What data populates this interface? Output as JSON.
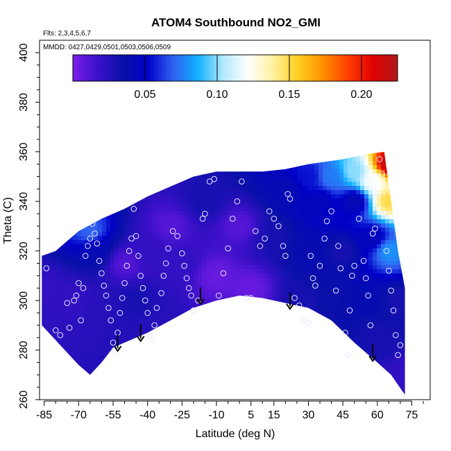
{
  "chart_data": {
    "type": "heatmap",
    "title": "ATOM4 Southbound NO2_GMI",
    "flights_note": "Flts: 2,3,4,5,6,7",
    "dates_note": "MMDD: 0427,0429,0501,0503,0506,0509",
    "xlabel": "Latitude (deg N)",
    "ylabel": "Theta (C)",
    "xlim": [
      -87,
      83
    ],
    "ylim": [
      260,
      405
    ],
    "xticks": [
      -85,
      -70,
      -55,
      -40,
      -25,
      -10,
      5,
      15,
      30,
      45,
      60,
      75
    ],
    "xtick_labels": [
      "-85",
      "-70",
      "-55",
      "-40",
      "-25",
      "-10",
      "5",
      "15",
      "30",
      "45",
      "60",
      "75"
    ],
    "yticks": [
      260,
      280,
      300,
      320,
      340,
      360,
      380,
      400
    ],
    "ytick_labels": [
      "260",
      "280",
      "300",
      "320",
      "340",
      "360",
      "380",
      "400"
    ],
    "colorbar": {
      "range": [
        0,
        0.225
      ],
      "ticks": [
        0.05,
        0.1,
        0.15,
        0.2
      ],
      "tick_labels": [
        "0.05",
        "0.10",
        "0.15",
        "0.20"
      ],
      "colors": [
        "#7a1ee8",
        "#3a10c8",
        "#0a10a8",
        "#0000c8",
        "#3060f0",
        "#10b0ff",
        "#b0e8ff",
        "#ffffff",
        "#fff0a0",
        "#ffd020",
        "#ff9000",
        "#ff4000",
        "#e00000",
        "#b01818"
      ]
    },
    "domain_top": [
      [
        -86,
        318
      ],
      [
        -80,
        320
      ],
      [
        -70,
        328
      ],
      [
        -60,
        333
      ],
      [
        -50,
        337
      ],
      [
        -40,
        342
      ],
      [
        -30,
        346
      ],
      [
        -20,
        350
      ],
      [
        -10,
        352
      ],
      [
        0,
        352
      ],
      [
        10,
        352
      ],
      [
        20,
        353
      ],
      [
        30,
        355
      ],
      [
        45,
        357
      ],
      [
        55,
        359
      ],
      [
        63,
        360
      ],
      [
        66,
        340
      ],
      [
        69,
        320
      ],
      [
        72,
        305
      ]
    ],
    "domain_bottom": [
      [
        72,
        262
      ],
      [
        69,
        266
      ],
      [
        66,
        270
      ],
      [
        60,
        275
      ],
      [
        50,
        283
      ],
      [
        40,
        292
      ],
      [
        30,
        297
      ],
      [
        20,
        299
      ],
      [
        10,
        301
      ],
      [
        0,
        302
      ],
      [
        -10,
        300
      ],
      [
        -20,
        297
      ],
      [
        -30,
        292
      ],
      [
        -40,
        287
      ],
      [
        -50,
        283
      ],
      [
        -55,
        281
      ],
      [
        -60,
        275
      ],
      [
        -65,
        270
      ],
      [
        -70,
        274
      ],
      [
        -75,
        279
      ],
      [
        -80,
        284
      ],
      [
        -86,
        290
      ]
    ],
    "field_points": [
      {
        "x": -85,
        "y": 305,
        "v": 0.02
      },
      {
        "x": -72,
        "y": 300,
        "v": 0.02
      },
      {
        "x": -65,
        "y": 328,
        "v": 0.07
      },
      {
        "x": -62,
        "y": 320,
        "v": 0.04
      },
      {
        "x": -60,
        "y": 295,
        "v": 0.025
      },
      {
        "x": -50,
        "y": 315,
        "v": 0.01
      },
      {
        "x": -45,
        "y": 300,
        "v": 0.03
      },
      {
        "x": -40,
        "y": 320,
        "v": 0.02
      },
      {
        "x": -35,
        "y": 290,
        "v": 0.025
      },
      {
        "x": -30,
        "y": 330,
        "v": 0.01
      },
      {
        "x": -25,
        "y": 315,
        "v": 0.02
      },
      {
        "x": -15,
        "y": 340,
        "v": 0.03
      },
      {
        "x": -10,
        "y": 310,
        "v": 0.005
      },
      {
        "x": 0,
        "y": 330,
        "v": 0.01
      },
      {
        "x": 5,
        "y": 305,
        "v": 0.005
      },
      {
        "x": 15,
        "y": 325,
        "v": 0.03
      },
      {
        "x": 20,
        "y": 345,
        "v": 0.04
      },
      {
        "x": 28,
        "y": 300,
        "v": 0.03
      },
      {
        "x": 30,
        "y": 320,
        "v": 0.04
      },
      {
        "x": 35,
        "y": 340,
        "v": 0.045
      },
      {
        "x": 40,
        "y": 300,
        "v": 0.035
      },
      {
        "x": 45,
        "y": 320,
        "v": 0.03
      },
      {
        "x": 50,
        "y": 340,
        "v": 0.04
      },
      {
        "x": 55,
        "y": 300,
        "v": 0.04
      },
      {
        "x": 58,
        "y": 325,
        "v": 0.045
      },
      {
        "x": 60,
        "y": 285,
        "v": 0.03
      },
      {
        "x": 65,
        "y": 320,
        "v": 0.08
      },
      {
        "x": 65,
        "y": 340,
        "v": 0.15
      },
      {
        "x": 65,
        "y": 355,
        "v": 0.22
      },
      {
        "x": 58,
        "y": 348,
        "v": 0.12
      },
      {
        "x": 50,
        "y": 352,
        "v": 0.1
      },
      {
        "x": 40,
        "y": 350,
        "v": 0.075
      },
      {
        "x": 30,
        "y": 350,
        "v": 0.055
      },
      {
        "x": 70,
        "y": 300,
        "v": 0.03
      },
      {
        "x": 72,
        "y": 270,
        "v": 0.02
      }
    ],
    "observations": [
      [
        -84,
        313
      ],
      [
        -80,
        288
      ],
      [
        -78,
        286
      ],
      [
        -75,
        299
      ],
      [
        -74,
        289
      ],
      [
        -72,
        300
      ],
      [
        -71,
        302
      ],
      [
        -70,
        307
      ],
      [
        -69,
        292
      ],
      [
        -68,
        305
      ],
      [
        -67,
        318
      ],
      [
        -66,
        322
      ],
      [
        -65,
        325
      ],
      [
        -64,
        331
      ],
      [
        -63,
        327
      ],
      [
        -62,
        323
      ],
      [
        -61,
        316
      ],
      [
        -60,
        311
      ],
      [
        -59,
        306
      ],
      [
        -58,
        302
      ],
      [
        -57,
        297
      ],
      [
        -56,
        292
      ],
      [
        -55,
        283
      ],
      [
        -54,
        279
      ],
      [
        -53,
        287
      ],
      [
        -52,
        295
      ],
      [
        -51,
        301
      ],
      [
        -50,
        307
      ],
      [
        -49,
        314
      ],
      [
        -48,
        320
      ],
      [
        -47,
        325
      ],
      [
        -46,
        337
      ],
      [
        -45,
        326
      ],
      [
        -44,
        318
      ],
      [
        -43,
        310
      ],
      [
        -42,
        305
      ],
      [
        -41,
        300
      ],
      [
        -40,
        295
      ],
      [
        -39,
        286
      ],
      [
        -38,
        284
      ],
      [
        -37,
        290
      ],
      [
        -36,
        297
      ],
      [
        -34,
        303
      ],
      [
        -33,
        310
      ],
      [
        -32,
        315
      ],
      [
        -31,
        321
      ],
      [
        -29,
        328
      ],
      [
        -27,
        326
      ],
      [
        -25,
        319
      ],
      [
        -24,
        314
      ],
      [
        -23,
        309
      ],
      [
        -22,
        305
      ],
      [
        -21,
        302
      ],
      [
        -20,
        296
      ],
      [
        -18,
        300
      ],
      [
        -16,
        333
      ],
      [
        -15,
        335
      ],
      [
        -13,
        348
      ],
      [
        -11,
        349
      ],
      [
        -9,
        302
      ],
      [
        -7,
        311
      ],
      [
        -5,
        321
      ],
      [
        -3,
        333
      ],
      [
        -1,
        340
      ],
      [
        1,
        348
      ],
      [
        3,
        301
      ],
      [
        5,
        301
      ],
      [
        7,
        328
      ],
      [
        9,
        322
      ],
      [
        11,
        325
      ],
      [
        13,
        336
      ],
      [
        15,
        333
      ],
      [
        17,
        330
      ],
      [
        19,
        322
      ],
      [
        20,
        318
      ],
      [
        21,
        343
      ],
      [
        22,
        341
      ],
      [
        24,
        301
      ],
      [
        26,
        298
      ],
      [
        28,
        292
      ],
      [
        30,
        291
      ],
      [
        31,
        318
      ],
      [
        32,
        309
      ],
      [
        33,
        306
      ],
      [
        35,
        314
      ],
      [
        37,
        325
      ],
      [
        38,
        332
      ],
      [
        40,
        336
      ],
      [
        42,
        304
      ],
      [
        43,
        322
      ],
      [
        44,
        313
      ],
      [
        46,
        287
      ],
      [
        47,
        278
      ],
      [
        48,
        296
      ],
      [
        49,
        310
      ],
      [
        50,
        314
      ],
      [
        52,
        333
      ],
      [
        54,
        316
      ],
      [
        55,
        309
      ],
      [
        56,
        302
      ],
      [
        57,
        290
      ],
      [
        58,
        327
      ],
      [
        59,
        329
      ],
      [
        60,
        343
      ],
      [
        61,
        357
      ],
      [
        62,
        351
      ],
      [
        63,
        335
      ],
      [
        64,
        320
      ],
      [
        65,
        312
      ],
      [
        66,
        304
      ],
      [
        67,
        296
      ],
      [
        68,
        286
      ],
      [
        69,
        278
      ],
      [
        70,
        282
      ]
    ],
    "profile_markers": [
      {
        "x": -53,
        "y": 283
      },
      {
        "x": -43,
        "y": 287
      },
      {
        "x": -17,
        "y": 302
      },
      {
        "x": 22,
        "y": 300
      },
      {
        "x": 58,
        "y": 279
      }
    ]
  }
}
